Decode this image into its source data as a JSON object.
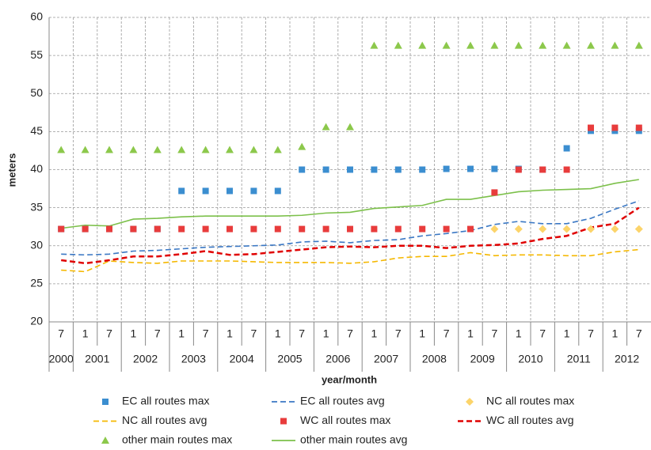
{
  "chart_data": {
    "type": "line",
    "y_label": "meters",
    "x_label": "year/month",
    "ylim": [
      20,
      60
    ],
    "yticks": [
      20,
      25,
      30,
      35,
      40,
      45,
      50,
      55,
      60
    ],
    "grid": true,
    "category_groups": [
      {
        "label": "2000",
        "categories": [
          "7"
        ]
      },
      {
        "label": "2001",
        "categories": [
          "1",
          "7"
        ]
      },
      {
        "label": "2002",
        "categories": [
          "1",
          "7"
        ]
      },
      {
        "label": "2003",
        "categories": [
          "1",
          "7"
        ]
      },
      {
        "label": "2004",
        "categories": [
          "1",
          "7"
        ]
      },
      {
        "label": "2005",
        "categories": [
          "1",
          "7"
        ]
      },
      {
        "label": "2006",
        "categories": [
          "1",
          "7"
        ]
      },
      {
        "label": "2007",
        "categories": [
          "1",
          "7"
        ]
      },
      {
        "label": "2008",
        "categories": [
          "1",
          "7"
        ]
      },
      {
        "label": "2009",
        "categories": [
          "1",
          "7"
        ]
      },
      {
        "label": "2010",
        "categories": [
          "1",
          "7"
        ]
      },
      {
        "label": "2011",
        "categories": [
          "1",
          "7"
        ]
      },
      {
        "label": "2012",
        "categories": [
          "1",
          "7"
        ]
      }
    ],
    "series": [
      {
        "name": "EC all routes max",
        "color": "#3b8ed0",
        "style": "marker",
        "marker": "square",
        "values": [
          32.2,
          32.2,
          32.2,
          32.2,
          32.2,
          37.2,
          37.2,
          37.2,
          37.2,
          37.2,
          40,
          40,
          40,
          40,
          40,
          40,
          40.1,
          40.1,
          40.1,
          40.1,
          40,
          42.8,
          45.1,
          45.1,
          45.1
        ]
      },
      {
        "name": "EC all routes avg",
        "color": "#3b78c4",
        "style": "line",
        "dash": true,
        "values": [
          28.9,
          28.8,
          28.9,
          29.3,
          29.4,
          29.6,
          29.8,
          29.9,
          30.0,
          30.1,
          30.5,
          30.6,
          30.4,
          30.7,
          30.8,
          31.3,
          31.6,
          32.0,
          32.8,
          33.2,
          32.9,
          32.9,
          33.6,
          34.8,
          35.9
        ]
      },
      {
        "name": "NC all routes max",
        "color": "#fcd46a",
        "style": "marker",
        "marker": "diamond",
        "values": [
          null,
          null,
          null,
          null,
          null,
          null,
          null,
          null,
          null,
          null,
          null,
          null,
          null,
          null,
          null,
          null,
          null,
          null,
          32.2,
          32.2,
          32.2,
          32.2,
          32.2,
          32.2,
          32.2
        ]
      },
      {
        "name": "NC all routes avg",
        "color": "#f5b800",
        "style": "line",
        "dash": true,
        "values": [
          26.8,
          26.6,
          28.0,
          27.8,
          27.7,
          28.0,
          28.0,
          28.0,
          27.9,
          27.8,
          27.8,
          27.8,
          27.7,
          27.9,
          28.4,
          28.6,
          28.6,
          29.1,
          28.7,
          28.8,
          28.8,
          28.7,
          28.7,
          29.2,
          29.5
        ]
      },
      {
        "name": "WC all routes max",
        "color": "#e83c3c",
        "style": "marker",
        "marker": "square",
        "values": [
          32.2,
          32.2,
          32.2,
          32.2,
          32.2,
          32.2,
          32.2,
          32.2,
          32.2,
          32.2,
          32.2,
          32.2,
          32.2,
          32.2,
          32.2,
          32.2,
          32.2,
          32.2,
          37.0,
          40.0,
          40.0,
          40.0,
          45.5,
          45.5,
          45.5
        ]
      },
      {
        "name": "WC all routes avg",
        "color": "#e00000",
        "style": "line",
        "dash": true,
        "values": [
          28.1,
          27.7,
          28.1,
          28.6,
          28.6,
          28.9,
          29.3,
          28.8,
          28.9,
          29.2,
          29.5,
          29.8,
          29.9,
          29.8,
          30.0,
          30.0,
          29.7,
          30.0,
          30.1,
          30.3,
          30.9,
          31.3,
          32.4,
          32.9,
          35.0
        ]
      },
      {
        "name": "other main routes max",
        "color": "#8cc84b",
        "style": "marker",
        "marker": "triangle",
        "values": [
          42.6,
          42.6,
          42.6,
          42.6,
          42.6,
          42.6,
          42.6,
          42.6,
          42.6,
          42.6,
          43.0,
          45.6,
          45.6,
          56.3,
          56.3,
          56.3,
          56.3,
          56.3,
          56.3,
          56.3,
          56.3,
          56.3,
          56.3,
          56.3,
          56.3
        ]
      },
      {
        "name": "other main routes avg",
        "color": "#7cc04a",
        "style": "line",
        "dash": false,
        "values": [
          32.3,
          32.7,
          32.6,
          33.5,
          33.6,
          33.8,
          33.9,
          33.9,
          33.9,
          33.9,
          34.0,
          34.3,
          34.4,
          34.9,
          35.1,
          35.3,
          36.1,
          36.1,
          36.6,
          37.1,
          37.3,
          37.4,
          37.5,
          38.2,
          38.7
        ]
      }
    ]
  }
}
